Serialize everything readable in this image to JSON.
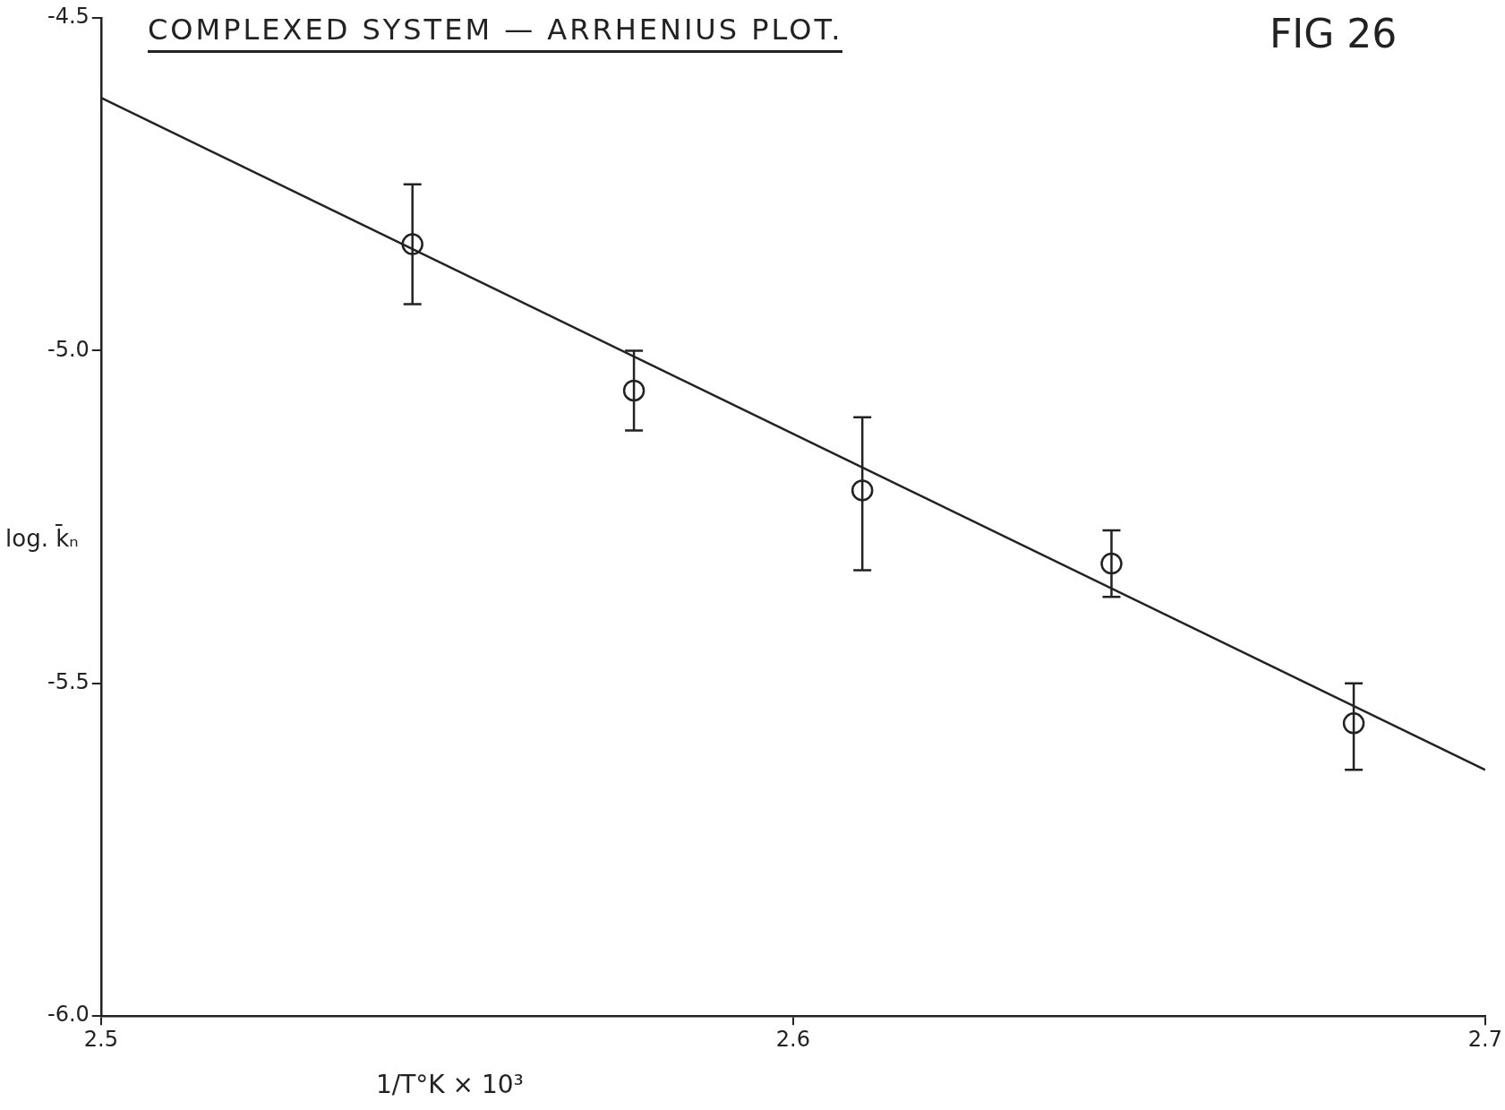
{
  "chart_data": {
    "type": "scatter",
    "title": "COMPLEXED SYSTEM — ARRHENIUS PLOT.",
    "xlabel": "1/T°K × 10³",
    "ylabel": "log. k̄ₙ",
    "annotations": [
      "FIG 26"
    ],
    "xlim": [
      2.5,
      2.7
    ],
    "xticks": [
      2.5,
      2.6,
      2.7
    ],
    "ylim": [
      -6.0,
      -4.5
    ],
    "yticks": [
      {
        "value": -6.0,
        "label": "-6.0"
      },
      {
        "value": -5.5,
        "label": "-5.5"
      },
      {
        "value": -5.0,
        "label": "-5.0"
      },
      {
        "value": -4.5,
        "label": "-4.5"
      }
    ],
    "grid": false,
    "legend": false,
    "marker": "circle",
    "series": [
      {
        "type": "scatter",
        "color": "#222222",
        "x": [
          2.545,
          2.577,
          2.61,
          2.646,
          2.681
        ],
        "values": [
          -4.84,
          -5.06,
          -5.21,
          -5.32,
          -5.56
        ],
        "errors": [
          [
            -4.93,
            -4.75
          ],
          [
            -5.12,
            -5.0
          ],
          [
            -5.33,
            -5.1
          ],
          [
            -5.37,
            -5.27
          ],
          [
            -5.63,
            -5.5
          ]
        ]
      },
      {
        "type": "line",
        "color": "#222222",
        "line_style": "solid",
        "marker": "none",
        "x": [
          2.5,
          2.7
        ],
        "values": [
          -4.62,
          -5.63
        ]
      }
    ]
  }
}
